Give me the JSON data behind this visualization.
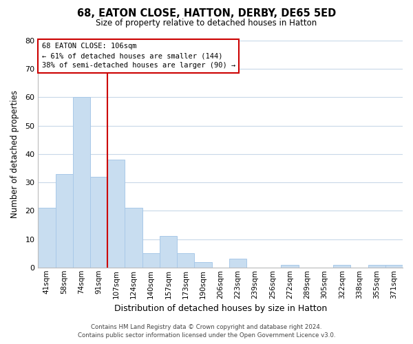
{
  "title": "68, EATON CLOSE, HATTON, DERBY, DE65 5ED",
  "subtitle": "Size of property relative to detached houses in Hatton",
  "xlabel": "Distribution of detached houses by size in Hatton",
  "ylabel": "Number of detached properties",
  "categories": [
    "41sqm",
    "58sqm",
    "74sqm",
    "91sqm",
    "107sqm",
    "124sqm",
    "140sqm",
    "157sqm",
    "173sqm",
    "190sqm",
    "206sqm",
    "223sqm",
    "239sqm",
    "256sqm",
    "272sqm",
    "289sqm",
    "305sqm",
    "322sqm",
    "338sqm",
    "355sqm",
    "371sqm"
  ],
  "values": [
    21,
    33,
    60,
    32,
    38,
    21,
    5,
    11,
    5,
    2,
    0,
    3,
    0,
    0,
    1,
    0,
    0,
    1,
    0,
    1,
    1
  ],
  "bar_color": "#c8ddf0",
  "bar_edge_color": "#a8c8e8",
  "ylim": [
    0,
    80
  ],
  "yticks": [
    0,
    10,
    20,
    30,
    40,
    50,
    60,
    70,
    80
  ],
  "vline_index": 4,
  "vline_color": "#cc0000",
  "annotation_title": "68 EATON CLOSE: 106sqm",
  "annotation_line1": "← 61% of detached houses are smaller (144)",
  "annotation_line2": "38% of semi-detached houses are larger (90) →",
  "footnote1": "Contains HM Land Registry data © Crown copyright and database right 2024.",
  "footnote2": "Contains public sector information licensed under the Open Government Licence v3.0.",
  "background_color": "#ffffff",
  "grid_color": "#c8d8e8"
}
